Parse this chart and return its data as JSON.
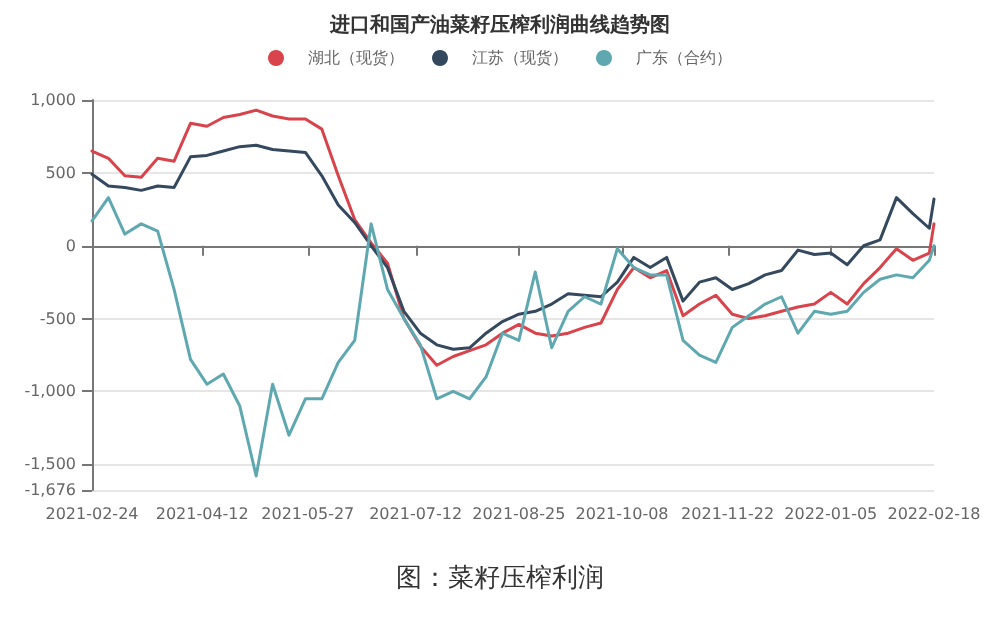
{
  "chart_data": {
    "type": "line",
    "title": "进口和国产油菜籽压榨利润曲线趋势图",
    "annotations": [
      "图：菜籽压榨利润"
    ],
    "x": [
      "2021-02-24",
      "2021-03-03",
      "2021-03-10",
      "2021-03-17",
      "2021-03-24",
      "2021-03-31",
      "2021-04-07",
      "2021-04-14",
      "2021-04-21",
      "2021-04-28",
      "2021-05-05",
      "2021-05-12",
      "2021-05-19",
      "2021-05-26",
      "2021-06-02",
      "2021-06-09",
      "2021-06-16",
      "2021-06-23",
      "2021-06-30",
      "2021-07-07",
      "2021-07-14",
      "2021-07-21",
      "2021-07-28",
      "2021-08-04",
      "2021-08-11",
      "2021-08-18",
      "2021-08-25",
      "2021-09-01",
      "2021-09-08",
      "2021-09-15",
      "2021-09-22",
      "2021-09-29",
      "2021-10-06",
      "2021-10-13",
      "2021-10-20",
      "2021-10-27",
      "2021-11-03",
      "2021-11-10",
      "2021-11-17",
      "2021-11-24",
      "2021-12-01",
      "2021-12-08",
      "2021-12-15",
      "2021-12-22",
      "2021-12-29",
      "2022-01-05",
      "2022-01-12",
      "2022-01-19",
      "2022-01-26",
      "2022-02-02",
      "2022-02-09",
      "2022-02-16",
      "2022-02-18"
    ],
    "series": [
      {
        "name": "湖北（现货）",
        "color": "#d9434b",
        "values": [
          650,
          600,
          480,
          470,
          600,
          580,
          840,
          820,
          880,
          900,
          930,
          890,
          870,
          870,
          800,
          480,
          180,
          20,
          -120,
          -500,
          -690,
          -820,
          -760,
          -720,
          -680,
          -600,
          -540,
          -600,
          -620,
          -600,
          -560,
          -530,
          -300,
          -150,
          -220,
          -170,
          -480,
          -400,
          -340,
          -470,
          -500,
          -480,
          -450,
          -420,
          -400,
          -320,
          -400,
          -260,
          -150,
          -20,
          -100,
          -50,
          150
        ]
      },
      {
        "name": "江苏（现货）",
        "color": "#34495e",
        "values": [
          490,
          410,
          400,
          380,
          410,
          400,
          610,
          620,
          650,
          680,
          690,
          660,
          650,
          640,
          480,
          280,
          160,
          0,
          -150,
          -450,
          -600,
          -680,
          -710,
          -700,
          -600,
          -520,
          -470,
          -450,
          -400,
          -330,
          -340,
          -350,
          -250,
          -80,
          -150,
          -80,
          -380,
          -250,
          -220,
          -300,
          -260,
          -200,
          -170,
          -30,
          -60,
          -50,
          -130,
          0,
          40,
          330,
          220,
          120,
          320
        ]
      },
      {
        "name": "广东（合约）",
        "color": "#5fa8b0",
        "values": [
          170,
          330,
          80,
          150,
          100,
          -300,
          -780,
          -950,
          -880,
          -1100,
          -1580,
          -950,
          -1300,
          -1050,
          -1050,
          -800,
          -650,
          150,
          -300,
          -500,
          -680,
          -1050,
          -1000,
          -1050,
          -900,
          -600,
          -650,
          -180,
          -700,
          -450,
          -350,
          -400,
          -20,
          -150,
          -200,
          -200,
          -650,
          -750,
          -800,
          -560,
          -480,
          -400,
          -350,
          -600,
          -450,
          -470,
          -450,
          -320,
          -230,
          -200,
          -220,
          -100,
          0
        ]
      }
    ],
    "xlim": [
      "2021-02-24",
      "2022-02-18"
    ],
    "xticks": [
      "2021-02-24",
      "2021-04-12",
      "2021-05-27",
      "2021-07-12",
      "2021-08-25",
      "2021-10-08",
      "2021-11-22",
      "2022-01-05",
      "2022-02-18"
    ],
    "ylim": [
      -1676,
      1000
    ],
    "yticks": [
      {
        "value": -1676,
        "label": "-1,676"
      },
      {
        "value": -1500,
        "label": "-1,500"
      },
      {
        "value": -1000,
        "label": "-1,000"
      },
      -500,
      0,
      500,
      {
        "value": 1000,
        "label": "1,000"
      }
    ],
    "grid": "y",
    "legend": "top",
    "marker": "none",
    "line_style": "solid"
  }
}
